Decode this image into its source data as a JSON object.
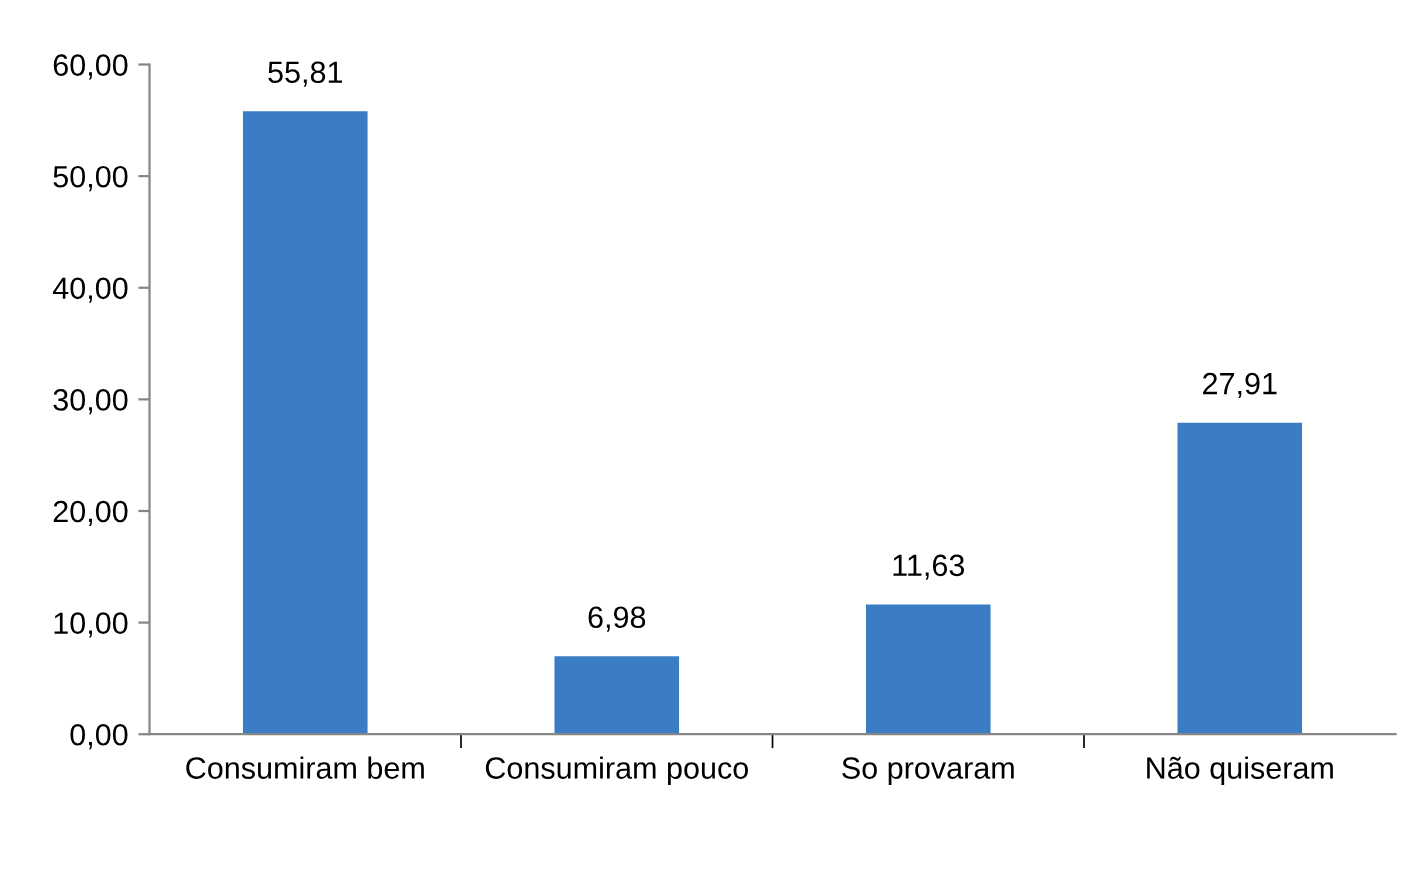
{
  "chart_data": {
    "type": "bar",
    "categories": [
      "Consumiram bem",
      "Consumiram pouco",
      "So provaram",
      "Não quiseram"
    ],
    "values": [
      55.81,
      6.98,
      11.63,
      27.91
    ],
    "value_labels": [
      "55,81",
      "6,98",
      "11,63",
      "27,91"
    ],
    "color": "#3a7dc4",
    "ylim": [
      0,
      60
    ],
    "yticks": [
      {
        "value": 0,
        "label": "0,00"
      },
      {
        "value": 10,
        "label": "10,00"
      },
      {
        "value": 20,
        "label": "20,00"
      },
      {
        "value": 30,
        "label": "30,00"
      },
      {
        "value": 40,
        "label": "40,00"
      },
      {
        "value": 50,
        "label": "50,00"
      },
      {
        "value": 60,
        "label": "60,00"
      }
    ],
    "grid": false,
    "legend": false
  }
}
